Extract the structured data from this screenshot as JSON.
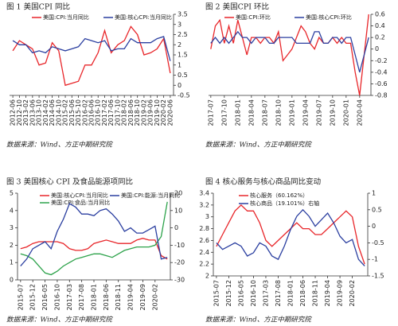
{
  "chart_data": [
    {
      "type": "line",
      "title": "图 1  美国CPI 同比",
      "source": "数据来源：Wind、方正中期研究院",
      "y_axis_side": "right",
      "categories": [
        "2012-06",
        "2012-10",
        "2013-02",
        "2013-06",
        "2013-10",
        "2014-02",
        "2014-06",
        "2014-10",
        "2015-02",
        "2015-06",
        "2015-10",
        "2016-02",
        "2016-06",
        "2016-10",
        "2017-02",
        "2017-06",
        "2017-10",
        "2018-02",
        "2018-06",
        "2018-10",
        "2019-02",
        "2019-06",
        "2019-10",
        "2020-02",
        "2020-06"
      ],
      "series": [
        {
          "name": "美国:CPI:当月同比",
          "color": "#e8262a",
          "values": [
            1.7,
            2.2,
            2.0,
            1.8,
            1.0,
            1.1,
            2.1,
            1.7,
            0.0,
            0.1,
            0.2,
            1.0,
            1.0,
            1.6,
            2.7,
            1.6,
            2.0,
            2.2,
            2.9,
            2.5,
            1.5,
            1.6,
            1.8,
            2.3,
            0.6
          ]
        },
        {
          "name": "美国:核心CPI:当月同比",
          "color": "#2b3fa0",
          "values": [
            2.2,
            2.0,
            2.0,
            1.6,
            1.7,
            1.6,
            1.9,
            1.8,
            1.7,
            1.8,
            1.9,
            2.3,
            2.2,
            2.1,
            2.2,
            1.7,
            1.8,
            1.8,
            2.3,
            2.1,
            2.1,
            2.1,
            2.3,
            2.4,
            1.2
          ]
        }
      ],
      "ylim": [
        -0.5,
        3.5
      ],
      "yticks": [
        -0.5,
        0,
        0.5,
        1,
        1.5,
        2,
        2.5,
        3,
        3.5
      ]
    },
    {
      "type": "line",
      "title": "图 2  美国CPI 环比",
      "source": "数据来源：Wind、方正中期研究院",
      "y_axis_side": "right",
      "categories": [
        "2017-07",
        null,
        null,
        "2017-10",
        null,
        null,
        "2018-01",
        null,
        null,
        "2018-04",
        null,
        null,
        "2018-07",
        null,
        null,
        "2018-10",
        null,
        null,
        "2019-01",
        null,
        null,
        "2019-04",
        null,
        null,
        "2019-07",
        null,
        null,
        "2019-10",
        null,
        null,
        "2020-01",
        null,
        null,
        "2020-04",
        null,
        null
      ],
      "series": [
        {
          "name": "美国:CPI:环比",
          "color": "#e8262a",
          "values": [
            0.0,
            0.4,
            0.5,
            0.1,
            0.4,
            0.1,
            0.5,
            0.2,
            -0.1,
            0.2,
            0.2,
            0.1,
            0.2,
            0.2,
            0.1,
            0.3,
            -0.2,
            -0.1,
            0.0,
            0.2,
            0.4,
            0.3,
            0.1,
            0.0,
            0.2,
            0.1,
            0.1,
            0.2,
            0.1,
            0.2,
            0.1,
            0.1,
            -0.4,
            -0.8,
            -0.1,
            0.6
          ]
        },
        {
          "name": "美国:核心CPI:环比",
          "color": "#2b3fa0",
          "values": [
            0.1,
            0.2,
            0.1,
            0.2,
            0.1,
            0.2,
            0.3,
            0.2,
            0.2,
            0.1,
            0.2,
            0.2,
            0.2,
            0.1,
            0.1,
            0.2,
            0.2,
            0.2,
            0.2,
            0.1,
            0.1,
            0.1,
            0.1,
            0.3,
            0.3,
            0.1,
            0.1,
            0.2,
            0.2,
            0.1,
            0.2,
            0.2,
            -0.1,
            -0.4,
            -0.1,
            0.2
          ]
        }
      ],
      "ylim": [
        -0.8,
        0.6
      ],
      "yticks": [
        -0.8,
        -0.6,
        -0.4,
        -0.2,
        0,
        0.2,
        0.4,
        0.6
      ]
    },
    {
      "type": "line",
      "title": "图 3  美国核心 CPI 及食品能源项同比",
      "source": "数据来源：Wind、方正中期研究院",
      "y_axis_side": "both",
      "categories": [
        "2015-07",
        null,
        "2015-12",
        null,
        "2016-05",
        null,
        "2016-10",
        null,
        "2017-03",
        null,
        "2017-08",
        null,
        "2018-01",
        null,
        "2018-06",
        null,
        "2018-11",
        null,
        "2019-04",
        null,
        "2019-09",
        null,
        "2020-02",
        null,
        null
      ],
      "series": [
        {
          "name": "美国:核心CPI:当月同比",
          "color": "#e8262a",
          "values": [
            1.8,
            1.9,
            2.1,
            2.2,
            2.2,
            2.2,
            2.2,
            2.1,
            1.8,
            1.7,
            1.7,
            1.8,
            2.1,
            2.2,
            2.3,
            2.2,
            2.1,
            2.1,
            2.1,
            2.3,
            2.4,
            2.3,
            2.3,
            1.4,
            1.2
          ]
        },
        {
          "name": "美国:CPI:食品:当月同比",
          "color": "#2ca24a",
          "values": [
            1.5,
            1.4,
            1.2,
            0.8,
            0.4,
            0.3,
            0.5,
            0.8,
            1.0,
            1.2,
            1.3,
            1.4,
            1.5,
            1.5,
            1.4,
            1.3,
            1.5,
            1.7,
            1.8,
            1.9,
            1.9,
            1.9,
            2.0,
            2.5,
            4.5
          ]
        },
        {
          "name": "美国:CPI:能源:当月同比",
          "color": "#2b3fa0",
          "axis": "y2",
          "values": [
            -22,
            -18,
            -12,
            -10,
            -8,
            -12,
            -2,
            5,
            14,
            12,
            8,
            8,
            7,
            10,
            11,
            8,
            4,
            -2,
            0,
            -3,
            -3,
            -1,
            1,
            -18,
            -17
          ]
        }
      ],
      "ylim": [
        0,
        5
      ],
      "yticks": [
        0,
        1,
        2,
        3,
        4,
        5
      ],
      "y2lim": [
        -30,
        20
      ],
      "y2ticks": [
        -30,
        -20,
        -10,
        0,
        10,
        20
      ]
    },
    {
      "type": "line",
      "title": "图 4  核心服务与核心商品同比变动",
      "source": "数据来源：Wind、方正中期研究院",
      "y_axis_side": "both",
      "categories": [
        "2015-07",
        null,
        "2015-12",
        null,
        "2016-05",
        null,
        "2016-10",
        null,
        "2017-03",
        null,
        "2017-08",
        null,
        "2018-01",
        null,
        "2018-06",
        null,
        "2018-11",
        null,
        "2019-04",
        null,
        "2019-09",
        null,
        "2020-02",
        null,
        null
      ],
      "series": [
        {
          "name": "核心服务（60.162%）",
          "color": "#e8262a",
          "values": [
            2.5,
            2.7,
            2.9,
            3.1,
            3.2,
            3.1,
            3.1,
            2.9,
            2.6,
            2.5,
            2.6,
            2.7,
            2.8,
            2.9,
            2.8,
            2.8,
            2.7,
            2.7,
            2.8,
            2.9,
            3.0,
            3.1,
            3.0,
            2.5,
            2.2
          ]
        },
        {
          "name": "核心商品（19.101%）右轴",
          "color": "#2b3fa0",
          "axis": "y2",
          "values": [
            -0.5,
            -0.7,
            -0.6,
            -0.5,
            -0.6,
            -0.9,
            -0.8,
            -0.5,
            -0.6,
            -0.9,
            -1.0,
            -0.6,
            -0.1,
            0.3,
            0.5,
            0.3,
            0.0,
            0.2,
            0.4,
            0.1,
            -0.3,
            -0.5,
            -0.4,
            -1.0,
            -1.2
          ]
        }
      ],
      "ylim": [
        2,
        3.4
      ],
      "yticks": [
        2,
        2.2,
        2.4,
        2.6,
        2.8,
        3,
        3.2,
        3.4
      ],
      "y2lim": [
        -1.5,
        1
      ],
      "y2ticks": [
        -1.5,
        -1,
        -0.5,
        0,
        0.5,
        1
      ]
    }
  ]
}
